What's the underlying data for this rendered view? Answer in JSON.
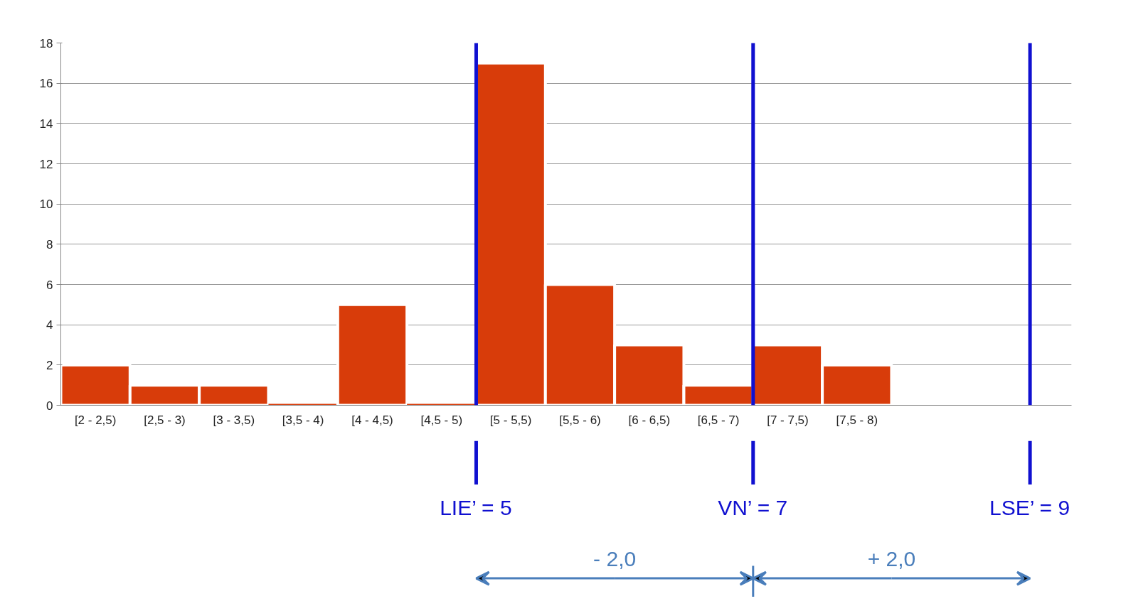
{
  "chart_data": {
    "type": "histogram",
    "bins": [
      2,
      2.5,
      3,
      3.5,
      4,
      4.5,
      5,
      5.5,
      6,
      6.5,
      7,
      7.5,
      8
    ],
    "values": [
      2,
      1,
      1,
      0,
      5,
      0,
      17,
      6,
      3,
      1,
      3,
      2
    ],
    "categories": [
      "[2 - 2,5)",
      "[2,5 - 3)",
      "[3 - 3,5)",
      "[3,5 - 4)",
      "[4 - 4,5)",
      "[4,5 - 5)",
      "[5 - 5,5)",
      "[5,5 - 6)",
      "[6 - 6,5)",
      "[6,5 - 7)",
      "[7 - 7,5)",
      "[7,5 - 8)"
    ],
    "color": "#d83c0a",
    "xlim": [
      2,
      9.3
    ],
    "ylim": [
      0,
      18
    ],
    "yticks": [
      0,
      2,
      4,
      6,
      8,
      10,
      12,
      14,
      16,
      18
    ],
    "grid": "y",
    "ref_lines": [
      {
        "axis": "x",
        "value": 5,
        "label": "LIE’ = 5",
        "color": "#1010d0"
      },
      {
        "axis": "x",
        "value": 7,
        "label": "VN’ = 7",
        "color": "#1010d0"
      },
      {
        "axis": "x",
        "value": 9,
        "label": "LSE’ = 9",
        "color": "#1010d0"
      }
    ],
    "annotations": [
      "- 2,0",
      "+ 2,0"
    ]
  }
}
